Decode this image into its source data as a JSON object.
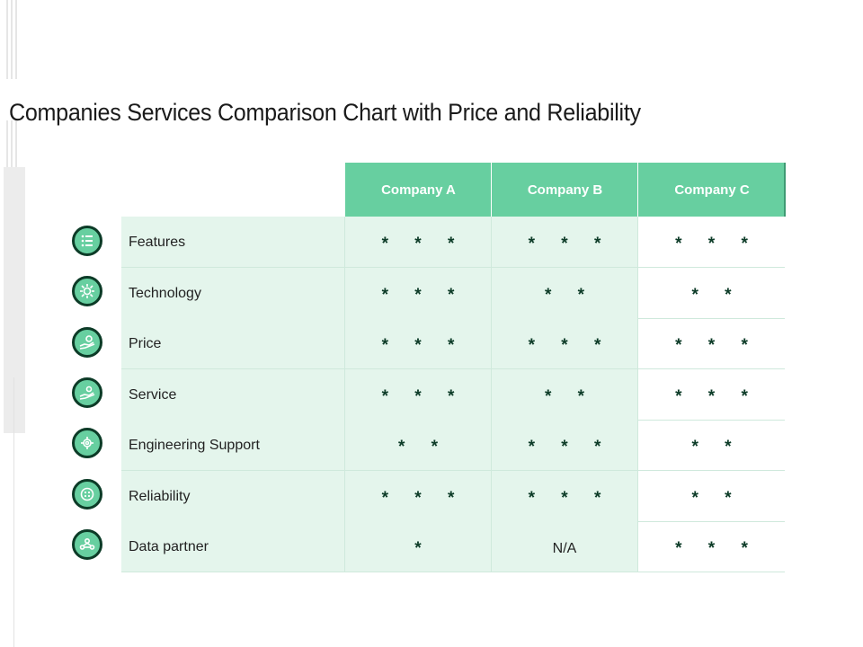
{
  "title": "Companies Services Comparison Chart with Price and Reliability",
  "columns": [
    "Company A",
    "Company B",
    "Company C"
  ],
  "rows": [
    {
      "label": "Features",
      "icon": "list-icon",
      "values": [
        "* * *",
        "* * *",
        "* * *"
      ]
    },
    {
      "label": "Technology",
      "icon": "network-gear-icon",
      "values": [
        "* * *",
        "* *",
        "* *"
      ]
    },
    {
      "label": "Price",
      "icon": "hand-coin-icon",
      "values": [
        "* * *",
        "* * *",
        "* * *"
      ]
    },
    {
      "label": "Service",
      "icon": "hand-service-icon",
      "values": [
        "* * *",
        "* *",
        "* * *"
      ]
    },
    {
      "label": "Engineering Support",
      "icon": "gear-support-icon",
      "values": [
        "* *",
        "* * *",
        "* *"
      ]
    },
    {
      "label": "Reliability",
      "icon": "shield-dots-icon",
      "values": [
        "* * *",
        "* * *",
        "* *"
      ]
    },
    {
      "label": "Data partner",
      "icon": "people-network-icon",
      "values": [
        "*",
        "N/A",
        "* * *"
      ]
    }
  ],
  "colors": {
    "header": "#67cfa0",
    "row_shade": "#e4f5ec",
    "star": "#0c3b27",
    "icon_ring": "#0c3b27"
  }
}
